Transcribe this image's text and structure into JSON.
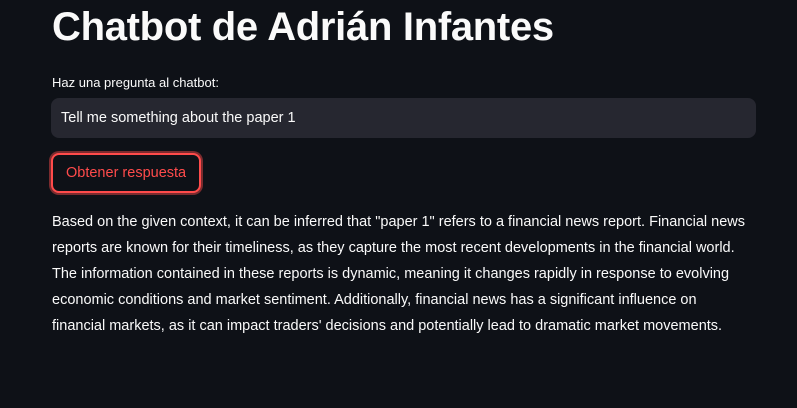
{
  "header": {
    "title": "Chatbot de Adrián Infantes"
  },
  "question": {
    "label": "Haz una pregunta al chatbot:",
    "value": "Tell me something about the paper 1"
  },
  "actions": {
    "submit_label": "Obtener respuesta"
  },
  "response": {
    "text": "Based on the given context, it can be inferred that \"paper 1\" refers to a financial news report. Financial news reports are known for their timeliness, as they capture the most recent developments in the financial world. The information contained in these reports is dynamic, meaning it changes rapidly in response to evolving economic conditions and market sentiment. Additionally, financial news has a significant influence on financial markets, as it can impact traders' decisions and potentially lead to dramatic market movements."
  },
  "colors": {
    "background": "#0e1117",
    "input_background": "#262730",
    "accent": "#ff4b4b",
    "text": "#fafafa"
  }
}
